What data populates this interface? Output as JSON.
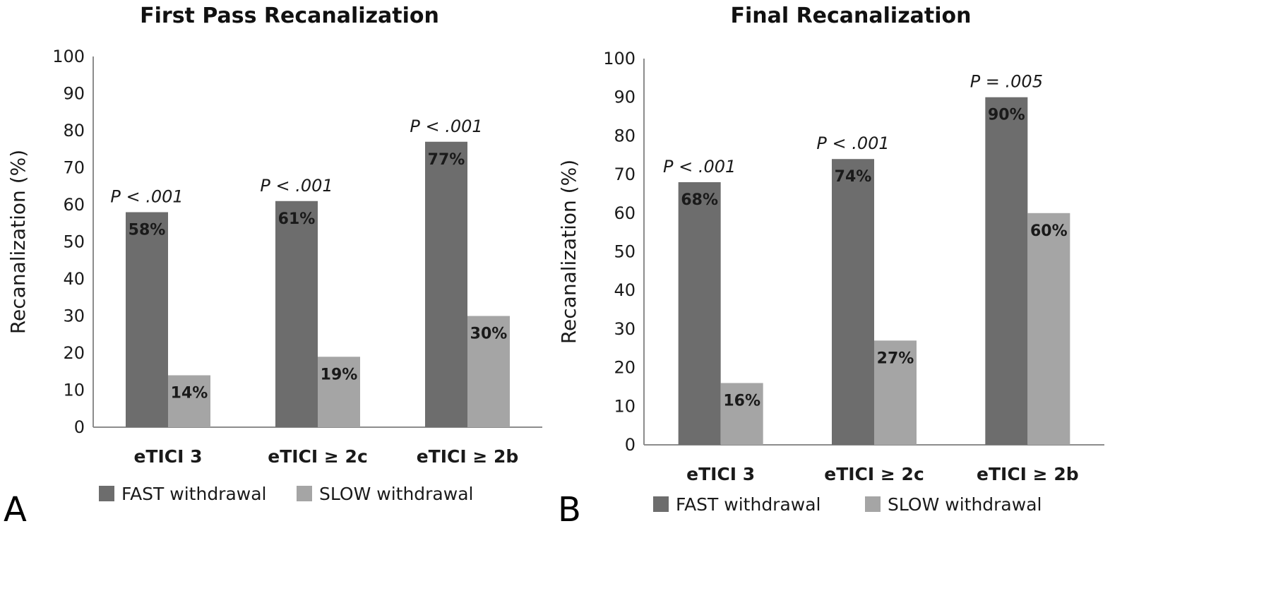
{
  "figure": {
    "panels": [
      {
        "letter": "A"
      },
      {
        "letter": "B"
      }
    ]
  },
  "chart_data": [
    {
      "type": "bar",
      "title": "First Pass Recanalization",
      "xlabel": "",
      "ylabel": "Recanalization (%)",
      "ylim": [
        0,
        100
      ],
      "yticks": [
        0,
        10,
        20,
        30,
        40,
        50,
        60,
        70,
        80,
        90,
        100
      ],
      "grid": false,
      "legend_position": "bottom",
      "categories": [
        "eTICI 3",
        "eTICI ≥ 2c",
        "eTICI ≥ 2b"
      ],
      "series": [
        {
          "name": "FAST withdrawal",
          "color": "#6d6d6d",
          "values": [
            58,
            61,
            77
          ],
          "labels": [
            "58%",
            "61%",
            "77%"
          ]
        },
        {
          "name": "SLOW withdrawal",
          "color": "#a5a5a5",
          "values": [
            14,
            19,
            30
          ],
          "labels": [
            "14%",
            "19%",
            "30%"
          ]
        }
      ],
      "annotations": [
        "P < .001",
        "P < .001",
        "P < .001"
      ]
    },
    {
      "type": "bar",
      "title": "Final Recanalization",
      "xlabel": "",
      "ylabel": "Recanalization (%)",
      "ylim": [
        0,
        100
      ],
      "yticks": [
        0,
        10,
        20,
        30,
        40,
        50,
        60,
        70,
        80,
        90,
        100
      ],
      "grid": false,
      "legend_position": "bottom",
      "categories": [
        "eTICI 3",
        "eTICI ≥ 2c",
        "eTICI ≥ 2b"
      ],
      "series": [
        {
          "name": "FAST withdrawal",
          "color": "#6d6d6d",
          "values": [
            68,
            74,
            90
          ],
          "labels": [
            "68%",
            "74%",
            "90%"
          ]
        },
        {
          "name": "SLOW withdrawal",
          "color": "#a5a5a5",
          "values": [
            16,
            27,
            60
          ],
          "labels": [
            "16%",
            "27%",
            "60%"
          ]
        }
      ],
      "annotations": [
        "P < .001",
        "P < .001",
        "P = .005"
      ]
    }
  ]
}
